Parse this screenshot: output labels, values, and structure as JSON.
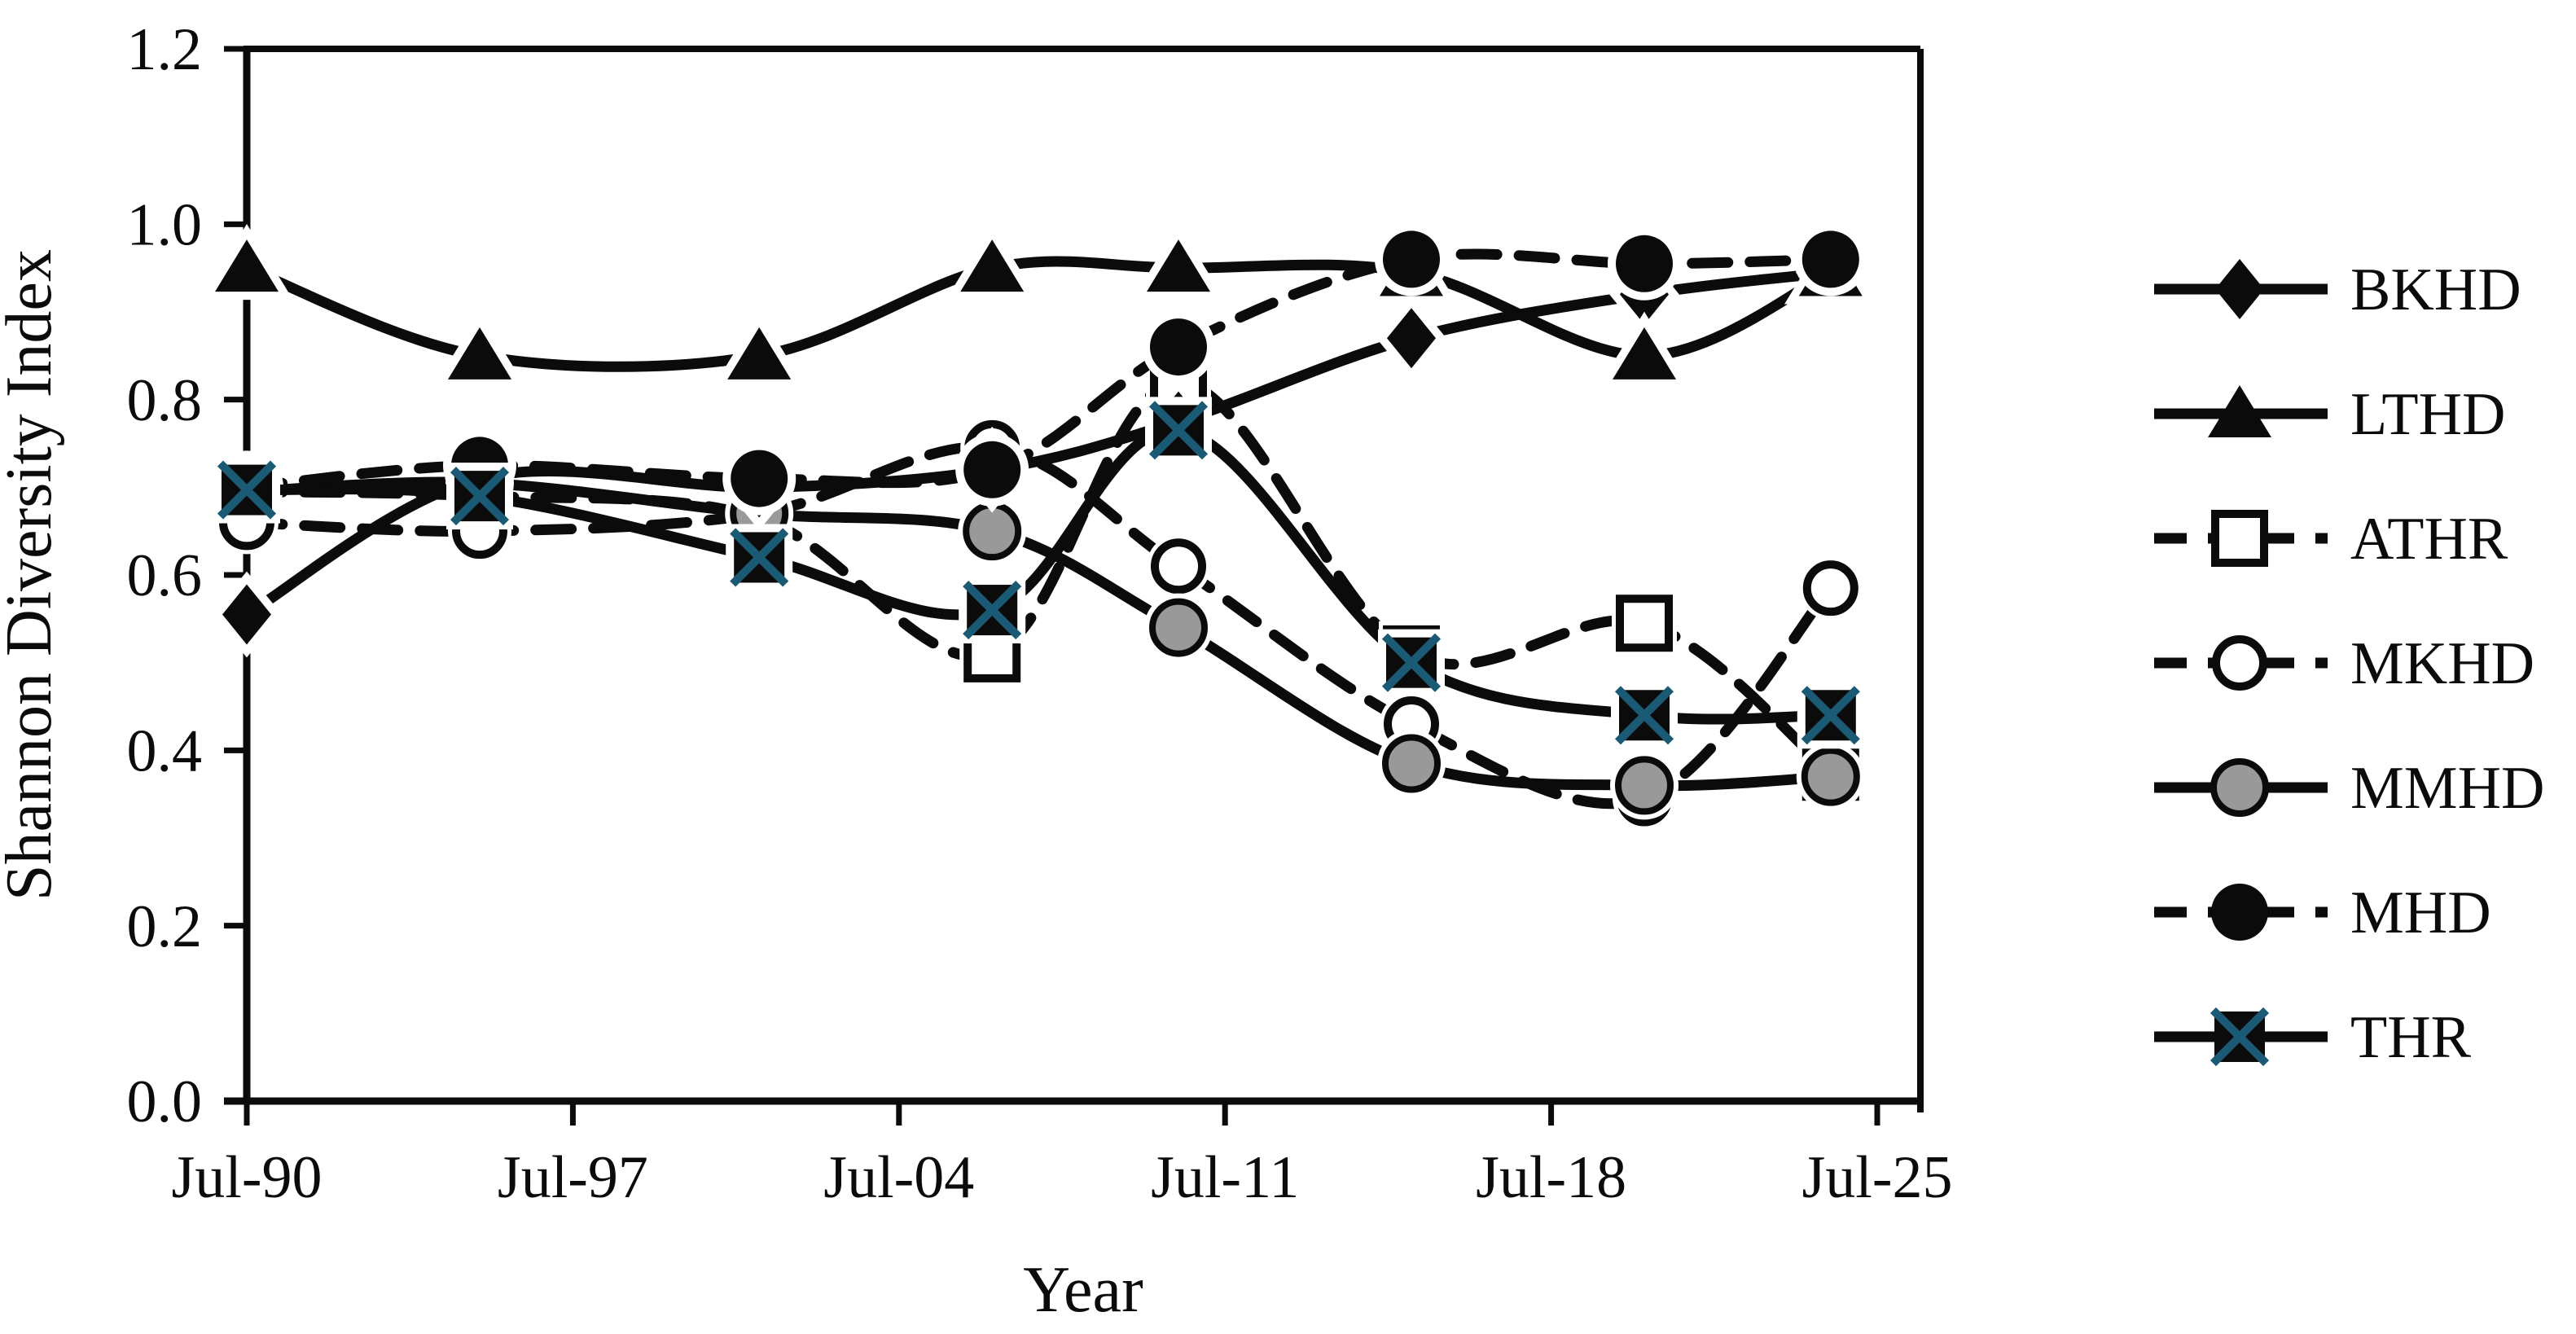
{
  "figure": {
    "kind": "scientific line chart",
    "background": "#ffffff"
  },
  "colors": {
    "ink": "#0b0b0b",
    "gray_marker_fill": "#999999",
    "x_cross_color": "#1b5a74",
    "open_marker_fill": "#ffffff"
  },
  "chart_data": {
    "type": "line",
    "title": "",
    "xlabel": "Year",
    "ylabel": "Shannon Diversity Index",
    "x_axis": {
      "tick_labels": [
        "Jul-90",
        "Jul-97",
        "Jul-04",
        "Jul-11",
        "Jul-18",
        "Jul-25"
      ],
      "tick_years": [
        1990,
        1997,
        2004,
        2011,
        2018,
        2025
      ],
      "range_years": [
        1990,
        2025.9
      ]
    },
    "y_axis": {
      "tick_labels": [
        "0.0",
        "0.2",
        "0.4",
        "0.6",
        "0.8",
        "1.0",
        "1.2"
      ],
      "ticks": [
        0.0,
        0.2,
        0.4,
        0.6,
        0.8,
        1.0,
        1.2
      ],
      "ylim": [
        0.0,
        1.2
      ]
    },
    "grid": "off",
    "legend_position": "right-outside",
    "x_years": [
      1990,
      1995,
      2001,
      2006,
      2010,
      2015,
      2020,
      2024
    ],
    "series": [
      {
        "name": "BKHD",
        "line": "solid",
        "marker": "filled-diamond",
        "values": [
          0.555,
          0.71,
          0.7,
          0.72,
          0.775,
          0.87,
          0.92,
          0.945
        ]
      },
      {
        "name": "LTHD",
        "line": "solid",
        "marker": "filled-triangle",
        "values": [
          0.95,
          0.85,
          0.85,
          0.95,
          0.95,
          0.945,
          0.85,
          0.945
        ]
      },
      {
        "name": "ATHR",
        "line": "dashed",
        "marker": "open-square",
        "values": [
          0.695,
          0.69,
          0.665,
          0.51,
          0.82,
          0.51,
          0.545,
          0.375
        ]
      },
      {
        "name": "MKHD",
        "line": "dashed",
        "marker": "open-circle",
        "values": [
          0.66,
          0.65,
          0.67,
          0.745,
          0.61,
          0.43,
          0.345,
          0.585
        ]
      },
      {
        "name": "MMHD",
        "line": "solid",
        "marker": "gray-circle",
        "values": [
          0.695,
          0.705,
          0.67,
          0.65,
          0.54,
          0.385,
          0.36,
          0.37
        ]
      },
      {
        "name": "MHD",
        "line": "dashed",
        "marker": "filled-circle",
        "values": [
          0.7,
          0.725,
          0.71,
          0.72,
          0.86,
          0.96,
          0.955,
          0.96
        ]
      },
      {
        "name": "THR",
        "line": "solid",
        "marker": "x-square",
        "values": [
          0.697,
          0.69,
          0.62,
          0.56,
          0.765,
          0.5,
          0.44,
          0.44
        ]
      }
    ]
  }
}
